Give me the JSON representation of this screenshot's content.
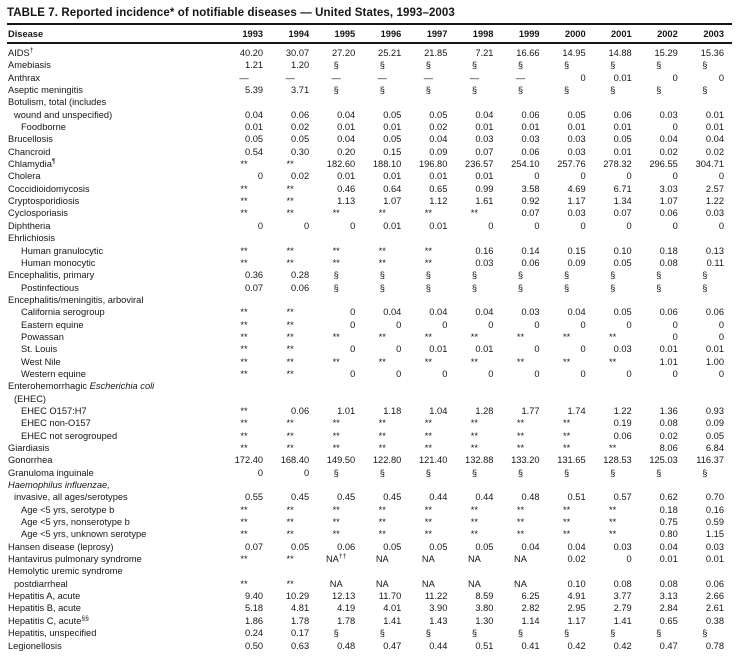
{
  "page": {
    "title": "TABLE 7. Reported incidence* of notifiable diseases — United States, 1993–2003"
  },
  "table": {
    "columns": [
      "Disease",
      "1993",
      "1994",
      "1995",
      "1996",
      "1997",
      "1998",
      "1999",
      "2000",
      "2001",
      "2002",
      "2003"
    ],
    "rows": [
      {
        "label": [
          {
            "t": "AIDS"
          },
          {
            "t": "†",
            "s": true
          }
        ],
        "ind": 0,
        "values": [
          "40.20",
          "30.07",
          "27.20",
          "25.21",
          "21.85",
          "7.21",
          "16.66",
          "14.95",
          "14.88",
          "15.29",
          "15.36"
        ]
      },
      {
        "label": [
          {
            "t": "Amebiasis"
          }
        ],
        "ind": 0,
        "values": [
          "1.21",
          "1.20",
          "§",
          "§",
          "§",
          "§",
          "§",
          "§",
          "§",
          "§",
          "§"
        ]
      },
      {
        "label": [
          {
            "t": "Anthrax"
          }
        ],
        "ind": 0,
        "values": [
          "—",
          "—",
          "—",
          "—",
          "—",
          "—",
          "—",
          "0",
          "0.01",
          "0",
          "0"
        ]
      },
      {
        "label": [
          {
            "t": "Aseptic meningitis"
          }
        ],
        "ind": 0,
        "values": [
          "5.39",
          "3.71",
          "§",
          "§",
          "§",
          "§",
          "§",
          "§",
          "§",
          "§",
          "§"
        ]
      },
      {
        "label": [
          {
            "t": "Botulism, total (includes"
          }
        ],
        "ind": 0
      },
      {
        "label": [
          {
            "t": "wound and unspecified)"
          }
        ],
        "ind": 1,
        "values": [
          "0.04",
          "0.06",
          "0.04",
          "0.05",
          "0.05",
          "0.04",
          "0.06",
          "0.05",
          "0.06",
          "0.03",
          "0.01"
        ]
      },
      {
        "label": [
          {
            "t": "Foodborne"
          }
        ],
        "ind": 2,
        "values": [
          "0.01",
          "0.02",
          "0.01",
          "0.01",
          "0.02",
          "0.01",
          "0.01",
          "0.01",
          "0.01",
          "0",
          "0.01"
        ]
      },
      {
        "label": [
          {
            "t": "Brucellosis"
          }
        ],
        "ind": 0,
        "values": [
          "0.05",
          "0.05",
          "0.04",
          "0.05",
          "0.04",
          "0.03",
          "0.03",
          "0.03",
          "0.05",
          "0.04",
          "0.04"
        ]
      },
      {
        "label": [
          {
            "t": "Chancroid"
          }
        ],
        "ind": 0,
        "values": [
          "0.54",
          "0.30",
          "0.20",
          "0.15",
          "0.09",
          "0.07",
          "0.06",
          "0.03",
          "0.01",
          "0.02",
          "0.02"
        ]
      },
      {
        "label": [
          {
            "t": "Chlamydia"
          },
          {
            "t": "¶",
            "s": true
          }
        ],
        "ind": 0,
        "values": [
          "**",
          "**",
          "182.60",
          "188.10",
          "196.80",
          "236.57",
          "254.10",
          "257.76",
          "278.32",
          "296.55",
          "304.71"
        ]
      },
      {
        "label": [
          {
            "t": "Cholera"
          }
        ],
        "ind": 0,
        "values": [
          "0",
          "0.02",
          "0.01",
          "0.01",
          "0.01",
          "0.01",
          "0",
          "0",
          "0",
          "0",
          "0"
        ]
      },
      {
        "label": [
          {
            "t": "Coccidioidomycosis"
          }
        ],
        "ind": 0,
        "values": [
          "**",
          "**",
          "0.46",
          "0.64",
          "0.65",
          "0.99",
          "3.58",
          "4.69",
          "6.71",
          "3.03",
          "2.57"
        ]
      },
      {
        "label": [
          {
            "t": "Cryptosporidiosis"
          }
        ],
        "ind": 0,
        "values": [
          "**",
          "**",
          "1.13",
          "1.07",
          "1.12",
          "1.61",
          "0.92",
          "1.17",
          "1.34",
          "1.07",
          "1.22"
        ]
      },
      {
        "label": [
          {
            "t": "Cyclosporiasis"
          }
        ],
        "ind": 0,
        "values": [
          "**",
          "**",
          "**",
          "**",
          "**",
          "**",
          "0.07",
          "0.03",
          "0.07",
          "0.06",
          "0.03"
        ]
      },
      {
        "label": [
          {
            "t": "Diphtheria"
          }
        ],
        "ind": 0,
        "values": [
          "0",
          "0",
          "0",
          "0.01",
          "0.01",
          "0",
          "0",
          "0",
          "0",
          "0",
          "0"
        ]
      },
      {
        "label": [
          {
            "t": "Ehrlichiosis"
          }
        ],
        "ind": 0
      },
      {
        "label": [
          {
            "t": "Human granulocytic"
          }
        ],
        "ind": 2,
        "values": [
          "**",
          "**",
          "**",
          "**",
          "**",
          "0.16",
          "0.14",
          "0.15",
          "0.10",
          "0.18",
          "0.13"
        ]
      },
      {
        "label": [
          {
            "t": "Human monocytic"
          }
        ],
        "ind": 2,
        "values": [
          "**",
          "**",
          "**",
          "**",
          "**",
          "0.03",
          "0.06",
          "0.09",
          "0.05",
          "0.08",
          "0.11"
        ]
      },
      {
        "label": [
          {
            "t": "Encephalitis, primary"
          }
        ],
        "ind": 0,
        "values": [
          "0.36",
          "0.28",
          "§",
          "§",
          "§",
          "§",
          "§",
          "§",
          "§",
          "§",
          "§"
        ]
      },
      {
        "label": [
          {
            "t": "Postinfectious"
          }
        ],
        "ind": 2,
        "values": [
          "0.07",
          "0.06",
          "§",
          "§",
          "§",
          "§",
          "§",
          "§",
          "§",
          "§",
          "§"
        ]
      },
      {
        "label": [
          {
            "t": "Encephalitis/meningitis, arboviral"
          }
        ],
        "ind": 0
      },
      {
        "label": [
          {
            "t": "California serogroup"
          }
        ],
        "ind": 2,
        "values": [
          "**",
          "**",
          "0",
          "0.04",
          "0.04",
          "0.04",
          "0.03",
          "0.04",
          "0.05",
          "0.06",
          "0.06"
        ]
      },
      {
        "label": [
          {
            "t": "Eastern equine"
          }
        ],
        "ind": 2,
        "values": [
          "**",
          "**",
          "0",
          "0",
          "0",
          "0",
          "0",
          "0",
          "0",
          "0",
          "0"
        ]
      },
      {
        "label": [
          {
            "t": "Powassan"
          }
        ],
        "ind": 2,
        "values": [
          "**",
          "**",
          "**",
          "**",
          "**",
          "**",
          "**",
          "**",
          "**",
          "0",
          "0"
        ]
      },
      {
        "label": [
          {
            "t": "St. Louis"
          }
        ],
        "ind": 2,
        "values": [
          "**",
          "**",
          "0",
          "0",
          "0.01",
          "0.01",
          "0",
          "0",
          "0.03",
          "0.01",
          "0.01"
        ]
      },
      {
        "label": [
          {
            "t": "West Nile"
          }
        ],
        "ind": 2,
        "values": [
          "**",
          "**",
          "**",
          "**",
          "**",
          "**",
          "**",
          "**",
          "**",
          "1.01",
          "1.00"
        ]
      },
      {
        "label": [
          {
            "t": "Western equine"
          }
        ],
        "ind": 2,
        "values": [
          "**",
          "**",
          "0",
          "0",
          "0",
          "0",
          "0",
          "0",
          "0",
          "0",
          "0"
        ]
      },
      {
        "label": [
          {
            "t": "Enterohemorrhagic "
          },
          {
            "t": "Escherichia coli",
            "i": true
          }
        ],
        "ind": 0
      },
      {
        "label": [
          {
            "t": "(EHEC)"
          }
        ],
        "ind": 1
      },
      {
        "label": [
          {
            "t": "EHEC O157:H7"
          }
        ],
        "ind": 2,
        "values": [
          "**",
          "0.06",
          "1.01",
          "1.18",
          "1.04",
          "1.28",
          "1.77",
          "1.74",
          "1.22",
          "1.36",
          "0.93"
        ]
      },
      {
        "label": [
          {
            "t": "EHEC non-O157"
          }
        ],
        "ind": 2,
        "values": [
          "**",
          "**",
          "**",
          "**",
          "**",
          "**",
          "**",
          "**",
          "0.19",
          "0.08",
          "0.09"
        ]
      },
      {
        "label": [
          {
            "t": "EHEC not serogrouped"
          }
        ],
        "ind": 2,
        "values": [
          "**",
          "**",
          "**",
          "**",
          "**",
          "**",
          "**",
          "**",
          "0.06",
          "0.02",
          "0.05"
        ]
      },
      {
        "label": [
          {
            "t": "Giardiasis"
          }
        ],
        "ind": 0,
        "values": [
          "**",
          "**",
          "**",
          "**",
          "**",
          "**",
          "**",
          "**",
          "**",
          "8.06",
          "6.84"
        ]
      },
      {
        "label": [
          {
            "t": "Gonorrhea"
          }
        ],
        "ind": 0,
        "values": [
          "172.40",
          "168.40",
          "149.50",
          "122.80",
          "121.40",
          "132.88",
          "133.20",
          "131.65",
          "128.53",
          "125.03",
          "116.37"
        ]
      },
      {
        "label": [
          {
            "t": "Granuloma inguinale"
          }
        ],
        "ind": 0,
        "values": [
          "0",
          "0",
          "§",
          "§",
          "§",
          "§",
          "§",
          "§",
          "§",
          "§",
          "§"
        ]
      },
      {
        "label": [
          {
            "t": "Haemophilus influenzae,",
            "i": true
          }
        ],
        "ind": 0
      },
      {
        "label": [
          {
            "t": "invasive, all ages/serotypes"
          }
        ],
        "ind": 1,
        "values": [
          "0.55",
          "0.45",
          "0.45",
          "0.45",
          "0.44",
          "0.44",
          "0.48",
          "0.51",
          "0.57",
          "0.62",
          "0.70"
        ]
      },
      {
        "label": [
          {
            "t": "Age <5 yrs, serotype b"
          }
        ],
        "ind": 2,
        "values": [
          "**",
          "**",
          "**",
          "**",
          "**",
          "**",
          "**",
          "**",
          "**",
          "0.18",
          "0.16"
        ]
      },
      {
        "label": [
          {
            "t": "Age <5 yrs, nonserotype b"
          }
        ],
        "ind": 2,
        "values": [
          "**",
          "**",
          "**",
          "**",
          "**",
          "**",
          "**",
          "**",
          "**",
          "0.75",
          "0.59"
        ]
      },
      {
        "label": [
          {
            "t": "Age <5 yrs, unknown serotype"
          }
        ],
        "ind": 2,
        "values": [
          "**",
          "**",
          "**",
          "**",
          "**",
          "**",
          "**",
          "**",
          "**",
          "0.80",
          "1.15"
        ]
      },
      {
        "label": [
          {
            "t": "Hansen disease (leprosy)"
          }
        ],
        "ind": 0,
        "values": [
          "0.07",
          "0.05",
          "0.06",
          "0.05",
          "0.05",
          "0.05",
          "0.04",
          "0.04",
          "0.03",
          "0.04",
          "0.03"
        ]
      },
      {
        "label": [
          {
            "t": "Hantavirus pulmonary syndrome"
          }
        ],
        "ind": 0,
        "values": [
          "**",
          "**",
          {
            "t": "NA",
            "s": "††"
          },
          "NA",
          "NA",
          "NA",
          "NA",
          "0.02",
          "0",
          "0.01",
          "0.01"
        ]
      },
      {
        "label": [
          {
            "t": "Hemolytic uremic syndrome"
          }
        ],
        "ind": 0
      },
      {
        "label": [
          {
            "t": "postdiarrheal"
          }
        ],
        "ind": 1,
        "values": [
          "**",
          "**",
          "NA",
          "NA",
          "NA",
          "NA",
          "NA",
          "0.10",
          "0.08",
          "0.08",
          "0.06"
        ]
      },
      {
        "label": [
          {
            "t": "Hepatitis A, acute"
          }
        ],
        "ind": 0,
        "values": [
          "9.40",
          "10.29",
          "12.13",
          "11.70",
          "11.22",
          "8.59",
          "6.25",
          "4.91",
          "3.77",
          "3.13",
          "2.66"
        ]
      },
      {
        "label": [
          {
            "t": "Hepatitis B, acute"
          }
        ],
        "ind": 0,
        "values": [
          "5.18",
          "4.81",
          "4.19",
          "4.01",
          "3.90",
          "3.80",
          "2.82",
          "2.95",
          "2.79",
          "2.84",
          "2.61"
        ]
      },
      {
        "label": [
          {
            "t": "Hepatitis C, acute"
          },
          {
            "t": "§§",
            "s": true
          }
        ],
        "ind": 0,
        "values": [
          "1.86",
          "1.78",
          "1.78",
          "1.41",
          "1.43",
          "1.30",
          "1.14",
          "1.17",
          "1.41",
          "0.65",
          "0.38"
        ]
      },
      {
        "label": [
          {
            "t": "Hepatitis, unspecified"
          }
        ],
        "ind": 0,
        "values": [
          "0.24",
          "0.17",
          "§",
          "§",
          "§",
          "§",
          "§",
          "§",
          "§",
          "§",
          "§"
        ]
      },
      {
        "label": [
          {
            "t": "Legionellosis"
          }
        ],
        "ind": 0,
        "values": [
          "0.50",
          "0.63",
          "0.48",
          "0.47",
          "0.44",
          "0.51",
          "0.41",
          "0.42",
          "0.42",
          "0.47",
          "0.78"
        ]
      }
    ]
  }
}
